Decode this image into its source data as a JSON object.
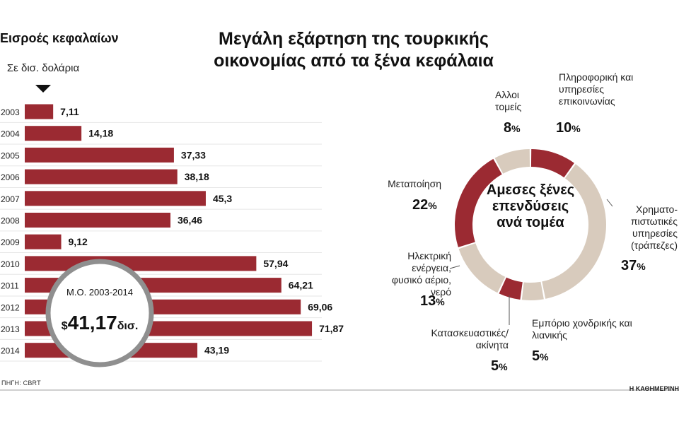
{
  "title": "Μεγάλη εξάρτηση της τουρκικής οικονομίας από τα ξένα κεφάλαια",
  "source": "ΠΗΓΗ: CBRT",
  "brand": "Η ΚΑΘΗΜΕΡΙΝΗ",
  "colors": {
    "bar": "#9b2a32",
    "pie_dark": "#9b2a32",
    "pie_light": "#d8cbbd",
    "avg_ring": "#8f8f8f"
  },
  "chart_data": [
    {
      "type": "bar",
      "orientation": "horizontal",
      "title": "Εισροές κεφαλαίων",
      "subtitle": "Σε δισ. δολάρια",
      "categories": [
        "2003",
        "2004",
        "2005",
        "2006",
        "2007",
        "2008",
        "2009",
        "2010",
        "2011",
        "2012",
        "2013",
        "2014"
      ],
      "values": [
        7.11,
        14.18,
        37.33,
        38.18,
        45.3,
        36.46,
        9.12,
        57.94,
        64.21,
        69.06,
        71.87,
        43.19
      ],
      "value_labels": [
        "7,11",
        "14,18",
        "37,33",
        "38,18",
        "45,3",
        "36,46",
        "9,12",
        "57,94",
        "64,21",
        "69,06",
        "71,87",
        "43,19"
      ],
      "annotation": {
        "label": "Μ.Ο. 2003-2014",
        "currency": "$",
        "value": "41,17",
        "unit": "δισ."
      }
    },
    {
      "type": "pie",
      "style": "donut",
      "title": "Αμεσες ξένες επενδύσεις ανά τομέα",
      "slices": [
        {
          "name": "Πληροφορική και υπηρεσίες επικοινωνίας",
          "value": 10,
          "label": "10%",
          "color": "#9b2a32"
        },
        {
          "name": "Χρηματο- πιστωτικές υπηρεσίες (τράπεζες)",
          "value": 37,
          "label": "37%",
          "color": "#d8cbbd"
        },
        {
          "name": "Εμπόριο χονδρικής και λιανικής",
          "value": 5,
          "label": "5%",
          "color": "#d8cbbd"
        },
        {
          "name": "Κατασκευαστικές/ ακίνητα",
          "value": 5,
          "label": "5%",
          "color": "#9b2a32"
        },
        {
          "name": "Ηλεκτρική ενέργεια, φυσικό αέριο, νερό",
          "value": 13,
          "label": "13%",
          "color": "#d8cbbd"
        },
        {
          "name": "Μεταποίηση",
          "value": 22,
          "label": "22%",
          "color": "#9b2a32"
        },
        {
          "name": "Αλλοι τομείς",
          "value": 8,
          "label": "8%",
          "color": "#d8cbbd"
        }
      ]
    }
  ]
}
